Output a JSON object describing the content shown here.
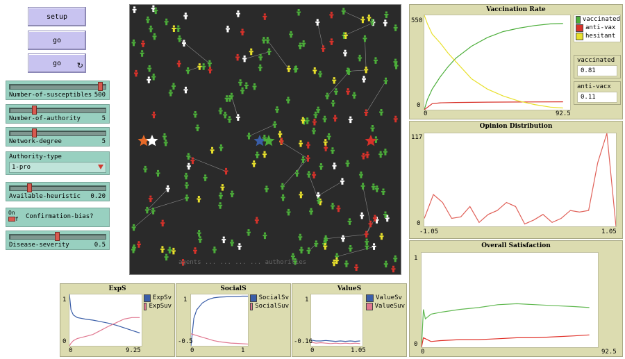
{
  "buttons": {
    "setup": "setup",
    "go_once": "go",
    "go_forever": "go",
    "forever_icon": "↻"
  },
  "sliders": [
    {
      "label": "Number-of-susceptibles",
      "value": "500",
      "fraction": 0.97
    },
    {
      "label": "Number-of-authority",
      "value": "5",
      "fraction": 0.25
    },
    {
      "label": "Network-degree",
      "value": "5",
      "fraction": 0.25
    },
    {
      "label": "Available-heuristic",
      "value": "0.20",
      "fraction": 0.2
    },
    {
      "label": "Disease-severity",
      "value": "0.5",
      "fraction": 0.5
    }
  ],
  "chooser": {
    "label": "Authority-type",
    "value": "1-pro"
  },
  "switch": {
    "on": "On",
    "off": "Off",
    "label": "Confirmation-bias?"
  },
  "world": {
    "overlay_text": "agents ... ... ... ... authorities"
  },
  "plots": {
    "vaccination": {
      "title": "Vaccination Rate",
      "ymax": "550",
      "ymin": "0",
      "xmin": "0",
      "xmax": "92.5",
      "legend": [
        {
          "label": "vaccinated",
          "color": "#4cae3a"
        },
        {
          "label": "anti-vax",
          "color": "#d8322a"
        },
        {
          "label": "hesitant",
          "color": "#e8e02c"
        }
      ]
    },
    "opinion": {
      "title": "Opinion Distribution",
      "ymax": "117",
      "ymin": "0",
      "xmin": "-1.05",
      "xmax": "1.05"
    },
    "satisfaction": {
      "title": "Overall Satisfaction",
      "ymax": "1",
      "ymin": "0",
      "xmin": "0",
      "xmax": "92.5"
    },
    "exps": {
      "title": "ExpS",
      "ymax": "1",
      "ymin": "0",
      "xmin": "0",
      "xmax": "9.25",
      "legend": [
        {
          "label": "ExpSv",
          "color": "#3a5ea8"
        },
        {
          "label": "ExpSuv",
          "color": "#e07890"
        }
      ]
    },
    "socials": {
      "title": "SocialS",
      "ymax": "1",
      "ymin": "-0.5",
      "xmin": "0",
      "xmax": "1",
      "legend": [
        {
          "label": "SocialSv",
          "color": "#3a5ea8"
        },
        {
          "label": "SocialSuv",
          "color": "#e07890"
        }
      ]
    },
    "values": {
      "title": "ValueS",
      "ymax": "1",
      "ymin": "-0.16",
      "xmin": "0",
      "xmax": "1.05",
      "legend": [
        {
          "label": "ValueSv",
          "color": "#3a5ea8"
        },
        {
          "label": "ValueSuv",
          "color": "#e07890"
        }
      ]
    }
  },
  "monitors": [
    {
      "label": "vaccinated",
      "value": "0.81"
    },
    {
      "label": "anti-vacx",
      "value": "0.11"
    }
  ],
  "colors": {
    "vaccinated": "#4cae3a",
    "antivax": "#d8322a",
    "hesitant": "#e8e02c",
    "authority_blue": "#3a5ea8",
    "authority_orange": "#e86a28"
  },
  "chart_data": [
    {
      "type": "line",
      "title": "Vaccination Rate",
      "xlim": [
        0,
        92.5
      ],
      "ylim": [
        0,
        550
      ],
      "series": [
        {
          "name": "vaccinated",
          "color": "#4cae3a",
          "x": [
            0,
            2,
            5,
            10,
            15,
            20,
            30,
            40,
            50,
            60,
            70,
            80,
            88
          ],
          "values": [
            0,
            60,
            120,
            190,
            250,
            300,
            370,
            420,
            455,
            475,
            490,
            500,
            502
          ]
        },
        {
          "name": "anti-vax",
          "color": "#d8322a",
          "x": [
            0,
            5,
            10,
            20,
            40,
            60,
            88
          ],
          "values": [
            0,
            35,
            40,
            42,
            44,
            45,
            46
          ]
        },
        {
          "name": "hesitant",
          "color": "#e8e02c",
          "x": [
            0,
            2,
            5,
            10,
            15,
            20,
            30,
            40,
            50,
            60,
            70,
            80,
            88
          ],
          "values": [
            550,
            500,
            440,
            390,
            330,
            280,
            180,
            120,
            80,
            50,
            30,
            15,
            10
          ]
        }
      ]
    },
    {
      "type": "line",
      "title": "Opinion Distribution",
      "xlim": [
        -1.05,
        1.05
      ],
      "ylim": [
        0,
        117
      ],
      "series": [
        {
          "name": "",
          "color": "#e06058",
          "x": [
            -1.05,
            -0.95,
            -0.85,
            -0.75,
            -0.65,
            -0.55,
            -0.45,
            -0.35,
            -0.25,
            -0.15,
            -0.05,
            0.05,
            0.15,
            0.25,
            0.35,
            0.45,
            0.55,
            0.65,
            0.75,
            0.85,
            0.95,
            1.05
          ],
          "values": [
            10,
            40,
            30,
            10,
            12,
            25,
            5,
            15,
            20,
            30,
            25,
            3,
            8,
            15,
            5,
            10,
            20,
            18,
            20,
            80,
            117,
            0
          ]
        }
      ]
    },
    {
      "type": "line",
      "title": "Overall Satisfaction",
      "xlim": [
        0,
        92.5
      ],
      "ylim": [
        0,
        1
      ],
      "series": [
        {
          "name": "",
          "color": "#60b850",
          "x": [
            0,
            1,
            2,
            5,
            10,
            20,
            30,
            40,
            50,
            60,
            70,
            80,
            88
          ],
          "values": [
            0,
            0.4,
            0.3,
            0.35,
            0.37,
            0.4,
            0.42,
            0.45,
            0.46,
            0.45,
            0.44,
            0.43,
            0.42
          ]
        },
        {
          "name": "",
          "color": "#e03028",
          "x": [
            0,
            1,
            5,
            10,
            20,
            30,
            40,
            50,
            60,
            70,
            80,
            88
          ],
          "values": [
            0,
            0.1,
            0.06,
            0.07,
            0.08,
            0.08,
            0.09,
            0.1,
            0.1,
            0.11,
            0.12,
            0.13
          ]
        }
      ]
    },
    {
      "type": "line",
      "title": "ExpS",
      "xlim": [
        0,
        9.25
      ],
      "ylim": [
        0,
        1
      ],
      "series": [
        {
          "name": "ExpSv",
          "color": "#3a5ea8",
          "x": [
            0,
            0.2,
            0.5,
            1,
            2,
            3,
            4,
            5,
            6,
            7,
            8,
            9
          ],
          "values": [
            1,
            0.7,
            0.6,
            0.55,
            0.52,
            0.5,
            0.47,
            0.44,
            0.4,
            0.35,
            0.3,
            0.25
          ]
        },
        {
          "name": "ExpSuv",
          "color": "#e07890",
          "x": [
            0,
            0.2,
            0.5,
            1,
            2,
            3,
            4,
            5,
            6,
            7,
            8,
            9
          ],
          "values": [
            0,
            0.05,
            0.1,
            0.14,
            0.18,
            0.22,
            0.3,
            0.38,
            0.45,
            0.52,
            0.55,
            0.55
          ]
        }
      ]
    },
    {
      "type": "line",
      "title": "SocialS",
      "xlim": [
        0,
        1
      ],
      "ylim": [
        -0.5,
        1
      ],
      "series": [
        {
          "name": "SocialSv",
          "color": "#3a5ea8",
          "x": [
            0,
            0.05,
            0.1,
            0.2,
            0.3,
            0.4,
            0.5,
            0.6,
            0.7,
            0.8,
            0.9,
            1
          ],
          "values": [
            -0.5,
            0.3,
            0.55,
            0.75,
            0.85,
            0.9,
            0.92,
            0.93,
            0.94,
            0.94,
            0.95,
            0.95
          ]
        },
        {
          "name": "SocialSuv",
          "color": "#e07890",
          "x": [
            0,
            0.1,
            0.2,
            0.3,
            0.4,
            0.5,
            0.6,
            0.7,
            0.8,
            0.9,
            1
          ],
          "values": [
            -0.15,
            -0.2,
            -0.25,
            -0.3,
            -0.35,
            -0.38,
            -0.4,
            -0.42,
            -0.43,
            -0.44,
            -0.45
          ]
        }
      ]
    },
    {
      "type": "line",
      "title": "ValueS",
      "xlim": [
        0,
        1.05
      ],
      "ylim": [
        -0.16,
        1
      ],
      "series": [
        {
          "name": "ValueSv",
          "color": "#3a5ea8",
          "x": [
            0,
            0.1,
            0.2,
            0.3,
            0.4,
            0.5,
            0.6,
            0.7,
            0.8,
            0.9,
            1
          ],
          "values": [
            -0.03,
            -0.05,
            -0.05,
            -0.04,
            -0.05,
            -0.06,
            -0.05,
            -0.06,
            -0.05,
            -0.06,
            -0.05
          ]
        },
        {
          "name": "ValueSuv",
          "color": "#e07890",
          "x": [
            0,
            0.1,
            0.2,
            0.3,
            0.4,
            0.5,
            0.6,
            0.7,
            0.8,
            0.9,
            1
          ],
          "values": [
            -0.08,
            -0.1,
            -0.09,
            -0.1,
            -0.11,
            -0.1,
            -0.11,
            -0.1,
            -0.11,
            -0.1,
            -0.11
          ]
        }
      ]
    }
  ]
}
